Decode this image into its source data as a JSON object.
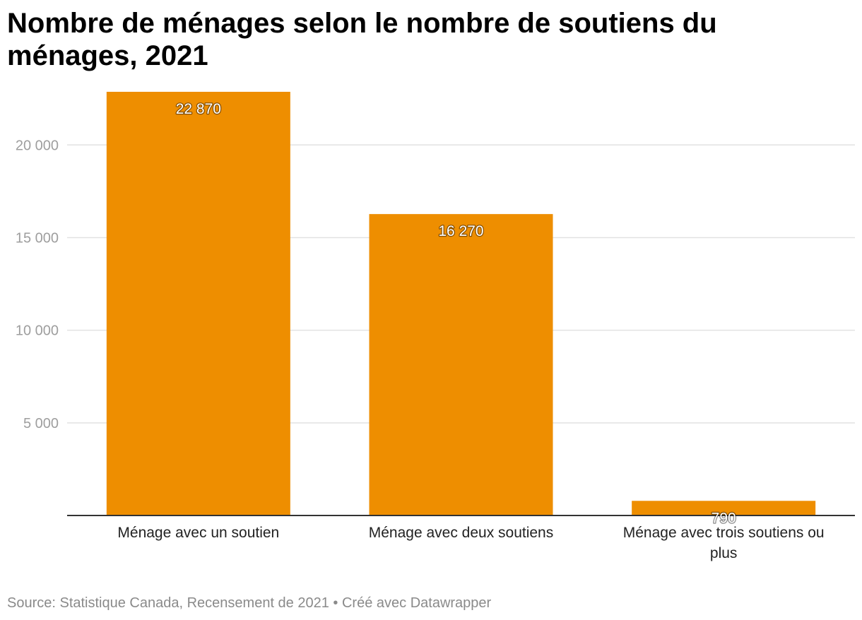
{
  "chart_data": {
    "type": "bar",
    "title": "Nombre de ménages selon le nombre de soutiens du ménages, 2021",
    "categories": [
      [
        "Ménage avec un soutien"
      ],
      [
        "Ménage avec deux soutiens"
      ],
      [
        "Ménage avec trois soutiens ou",
        "plus"
      ]
    ],
    "values": [
      22870,
      16270,
      790
    ],
    "value_labels": [
      "22 870",
      "16 270",
      "790"
    ],
    "yticks": [
      5000,
      10000,
      15000,
      20000
    ],
    "ytick_labels": [
      "5 000",
      "10 000",
      "15 000",
      "20 000"
    ],
    "ylim": [
      0,
      22870
    ],
    "grid": true,
    "bar_color": "#ee8e00",
    "grid_color": "#e2e2e2",
    "tick_label_color": "#9e9e9e",
    "axis_color": "#333333"
  },
  "footer": {
    "source": "Source: Statistique Canada, Recensement de 2021",
    "separator": " • ",
    "credit": "Créé avec Datawrapper"
  }
}
